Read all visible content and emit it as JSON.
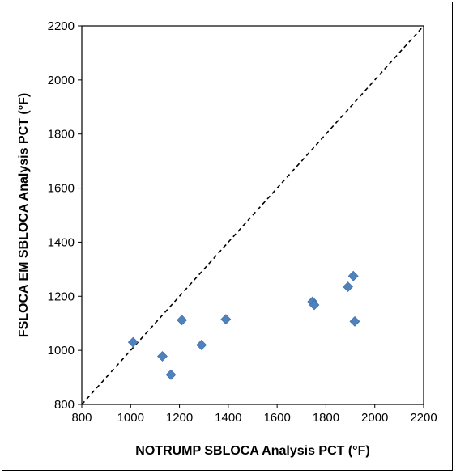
{
  "chart_data": {
    "type": "scatter",
    "title": "",
    "xlabel": "NOTRUMP SBLOCA Analysis PCT (°F)",
    "ylabel": "FSLOCA EM SBLOCA Analysis PCT (°F)",
    "xlim": [
      800,
      2200
    ],
    "ylim": [
      800,
      2200
    ],
    "xticks": [
      800,
      1000,
      1200,
      1400,
      1600,
      1800,
      2000,
      2200
    ],
    "yticks": [
      800,
      1000,
      1200,
      1400,
      1600,
      1800,
      2000,
      2200
    ],
    "grid": false,
    "legend": "none",
    "marker": "diamond",
    "marker_color": "#4F81BD",
    "reference_line": {
      "style": "dashed",
      "color": "#000000",
      "from": [
        800,
        800
      ],
      "to": [
        2200,
        2200
      ]
    },
    "points": [
      {
        "x": 1010,
        "y": 1030
      },
      {
        "x": 1130,
        "y": 978
      },
      {
        "x": 1165,
        "y": 910
      },
      {
        "x": 1210,
        "y": 1112
      },
      {
        "x": 1290,
        "y": 1020
      },
      {
        "x": 1390,
        "y": 1115
      },
      {
        "x": 1745,
        "y": 1180
      },
      {
        "x": 1752,
        "y": 1168
      },
      {
        "x": 1890,
        "y": 1235
      },
      {
        "x": 1912,
        "y": 1275
      },
      {
        "x": 1918,
        "y": 1107
      }
    ]
  }
}
